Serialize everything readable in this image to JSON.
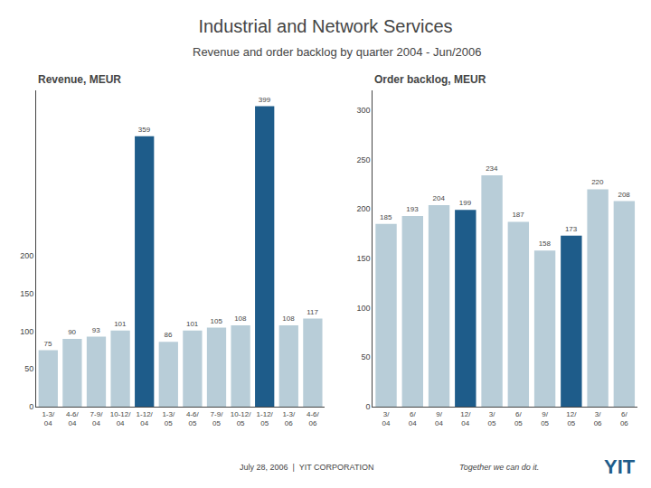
{
  "title": "Industrial and Network Services",
  "subtitle": "Revenue and order backlog by quarter 2004 - Jun/2006",
  "annotations": [
    {
      "text": "July 28, 2006  |  YIT CORPORATION"
    },
    {
      "text": "Together we can do it."
    },
    {
      "text": "YIT"
    }
  ],
  "chart_data": [
    {
      "type": "bar",
      "title": "Revenue, MEUR",
      "categories": [
        "1-3/\n04",
        "4-6/\n04",
        "7-9/\n04",
        "10-12/\n04",
        "1-12/\n04",
        "1-3/\n05",
        "4-6/\n05",
        "7-9/\n05",
        "10-12/\n05",
        "1-12/\n05",
        "1-3/\n06",
        "4-6/\n06"
      ],
      "values": [
        75,
        90,
        93,
        101,
        359,
        86,
        101,
        105,
        108,
        399,
        108,
        117
      ],
      "colors": [
        "#b8cdd8",
        "#b8cdd8",
        "#b8cdd8",
        "#b8cdd8",
        "#1e5c8a",
        "#b8cdd8",
        "#b8cdd8",
        "#b8cdd8",
        "#b8cdd8",
        "#1e5c8a",
        "#b8cdd8",
        "#b8cdd8"
      ],
      "ylim": [
        0,
        420
      ],
      "yticks": [
        0,
        50,
        100,
        150,
        200
      ],
      "grid": false,
      "data_labels": true
    },
    {
      "type": "bar",
      "title": "Order backlog, MEUR",
      "categories": [
        "3/\n04",
        "6/\n04",
        "9/\n04",
        "12/\n04",
        "3/\n05",
        "6/\n05",
        "9/\n05",
        "12/\n05",
        "3/\n06",
        "6/\n06"
      ],
      "values": [
        185,
        193,
        204,
        199,
        234,
        187,
        158,
        173,
        220,
        208
      ],
      "colors": [
        "#b8cdd8",
        "#b8cdd8",
        "#b8cdd8",
        "#1e5c8a",
        "#b8cdd8",
        "#b8cdd8",
        "#b8cdd8",
        "#1e5c8a",
        "#b8cdd8",
        "#b8cdd8"
      ],
      "ylim": [
        0,
        320
      ],
      "yticks": [
        0,
        50,
        100,
        150,
        200,
        250,
        300
      ],
      "grid": false,
      "data_labels": true
    }
  ]
}
